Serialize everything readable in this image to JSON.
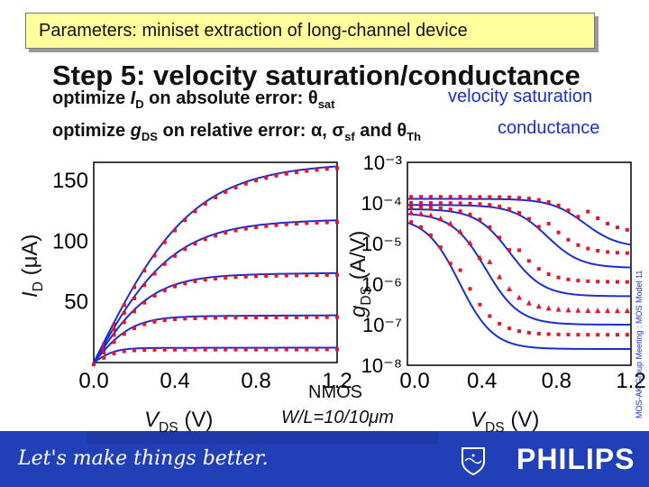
{
  "header": {
    "title": "Parameters: miniset extraction of long-channel device"
  },
  "step_title": "Step 5: velocity saturation/conductance",
  "line1": {
    "prefix": "optimize ",
    "var": "I",
    "sub": "D",
    "rest": " on absolute error: ",
    "param": "θ",
    "param_sub": "sat"
  },
  "line2": {
    "prefix": "optimize ",
    "var": "g",
    "sub": "DS",
    "rest": " on relative error: α, σ",
    "sf_sub": "sf",
    "and": " and θ",
    "th_sub": "Th"
  },
  "annotations": {
    "velocity_saturation": "velocity saturation",
    "conductance": "conductance"
  },
  "device": {
    "type": "NMOS",
    "wl_label": "W/L=10/10μm"
  },
  "side_note": "MOS-AK Group Meeting : MOS Model 11",
  "footer": {
    "slogan": "Let's make things better.",
    "brand": "PHILIPS"
  },
  "colors": {
    "model_line": "#1a2fd0",
    "measured": "#e8142a",
    "title_bg": "#ffff9e",
    "footer": "#2140b8"
  },
  "chart_data": [
    {
      "type": "line",
      "ylabel": "I_D (μA)",
      "xlabel": "V_DS (V)",
      "x_ticks": [
        "0.0",
        "0.4",
        "0.8",
        "1.2"
      ],
      "y_ticks": [
        "50",
        "100",
        "150"
      ],
      "xlim": [
        0,
        1.2
      ],
      "ylim": [
        0,
        165
      ],
      "series": [
        {
          "isat": 160,
          "vsat": 0.55
        },
        {
          "isat": 115,
          "vsat": 0.45
        },
        {
          "isat": 72,
          "vsat": 0.33
        },
        {
          "isat": 38,
          "vsat": 0.22
        },
        {
          "isat": 12,
          "vsat": 0.12
        }
      ]
    },
    {
      "type": "line",
      "ylabel": "g_DS (A/V)",
      "xlabel": "V_DS (V)",
      "x_ticks": [
        "0.0",
        "0.4",
        "0.8",
        "1.2"
      ],
      "y_ticks": [
        "10⁻³",
        "10⁻⁴",
        "10⁻⁵",
        "10⁻⁶",
        "10⁻⁷",
        "10⁻⁸"
      ],
      "xlim": [
        0,
        1.2
      ],
      "ylog_range": [
        -8,
        -3
      ],
      "series": [
        {
          "lin": -3.9,
          "sat": -5.1,
          "knee": 0.95
        },
        {
          "lin": -4.05,
          "sat": -5.6,
          "knee": 0.75
        },
        {
          "lin": -4.15,
          "sat": -6.3,
          "knee": 0.55
        },
        {
          "lin": -4.25,
          "sat": -7.0,
          "knee": 0.42
        },
        {
          "lin": -4.35,
          "sat": -7.6,
          "knee": 0.28
        }
      ]
    }
  ]
}
